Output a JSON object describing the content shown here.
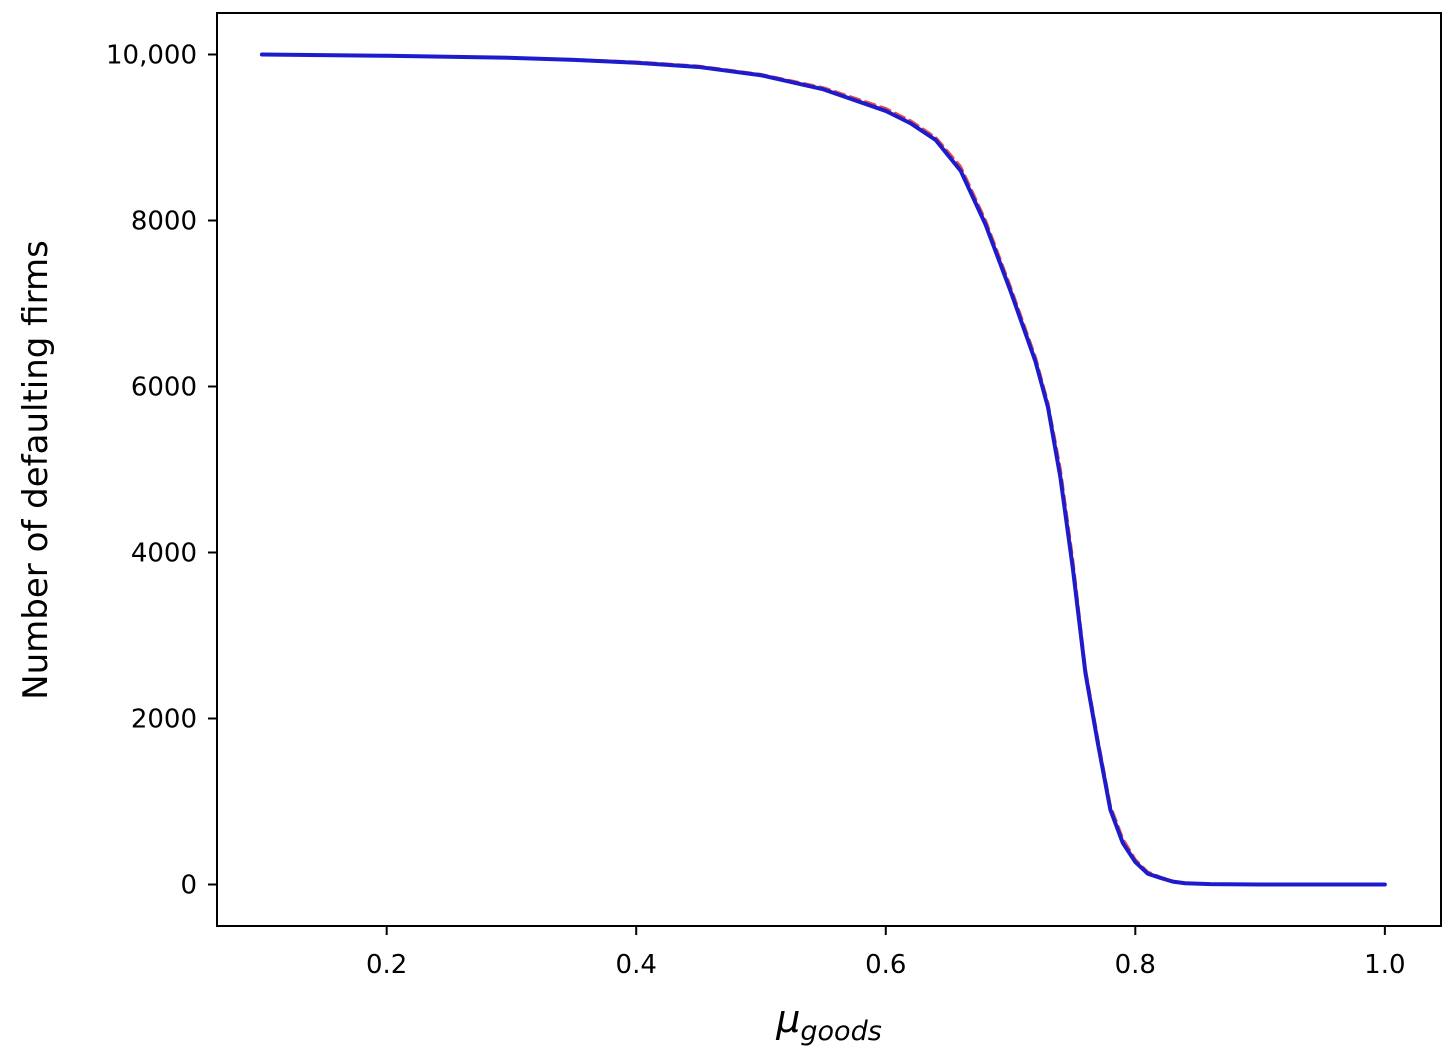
{
  "chart_data": {
    "type": "line",
    "title": "",
    "xlabel": {
      "main": "μ",
      "subscript": "goods"
    },
    "ylabel": "Number of defaulting firms",
    "xlim": [
      0.064,
      1.045
    ],
    "ylim": [
      -500,
      10500
    ],
    "grid": false,
    "legend": "none",
    "xticks": [
      0.2,
      0.4,
      0.6,
      0.8,
      1.0
    ],
    "xtick_labels": [
      "0.2",
      "0.4",
      "0.6",
      "0.8",
      "1.0"
    ],
    "yticks": [
      0,
      2000,
      4000,
      6000,
      8000,
      10000
    ],
    "ytick_labels": [
      "0",
      "2000",
      "4000",
      "6000",
      "8000",
      "10,000"
    ],
    "series": [
      {
        "color": "#e8302a",
        "style": "dashed",
        "x": [
          0.1,
          0.2,
          0.3,
          0.35,
          0.4,
          0.45,
          0.5,
          0.55,
          0.6,
          0.62,
          0.64,
          0.66,
          0.68,
          0.7,
          0.72,
          0.73,
          0.74,
          0.75,
          0.76,
          0.77,
          0.78,
          0.79,
          0.8,
          0.81,
          0.82,
          0.83,
          0.84,
          0.86,
          0.9,
          1.0
        ],
        "y": [
          10000,
          9985,
          9960,
          9940,
          9910,
          9860,
          9760,
          9600,
          9350,
          9200,
          9000,
          8650,
          8000,
          7200,
          6350,
          5800,
          5000,
          3900,
          2600,
          1750,
          950,
          550,
          300,
          150,
          90,
          40,
          20,
          5,
          0,
          0
        ]
      },
      {
        "color": "#1c1ccd",
        "style": "solid",
        "x": [
          0.1,
          0.2,
          0.3,
          0.35,
          0.4,
          0.45,
          0.5,
          0.55,
          0.6,
          0.62,
          0.64,
          0.66,
          0.68,
          0.7,
          0.72,
          0.73,
          0.74,
          0.75,
          0.76,
          0.77,
          0.78,
          0.79,
          0.8,
          0.81,
          0.82,
          0.83,
          0.84,
          0.86,
          0.9,
          1.0
        ],
        "y": [
          10000,
          9985,
          9960,
          9935,
          9900,
          9850,
          9750,
          9580,
          9320,
          9170,
          8970,
          8600,
          7950,
          7150,
          6300,
          5750,
          4900,
          3800,
          2550,
          1700,
          900,
          500,
          270,
          130,
          80,
          35,
          15,
          5,
          0,
          0
        ]
      }
    ]
  }
}
